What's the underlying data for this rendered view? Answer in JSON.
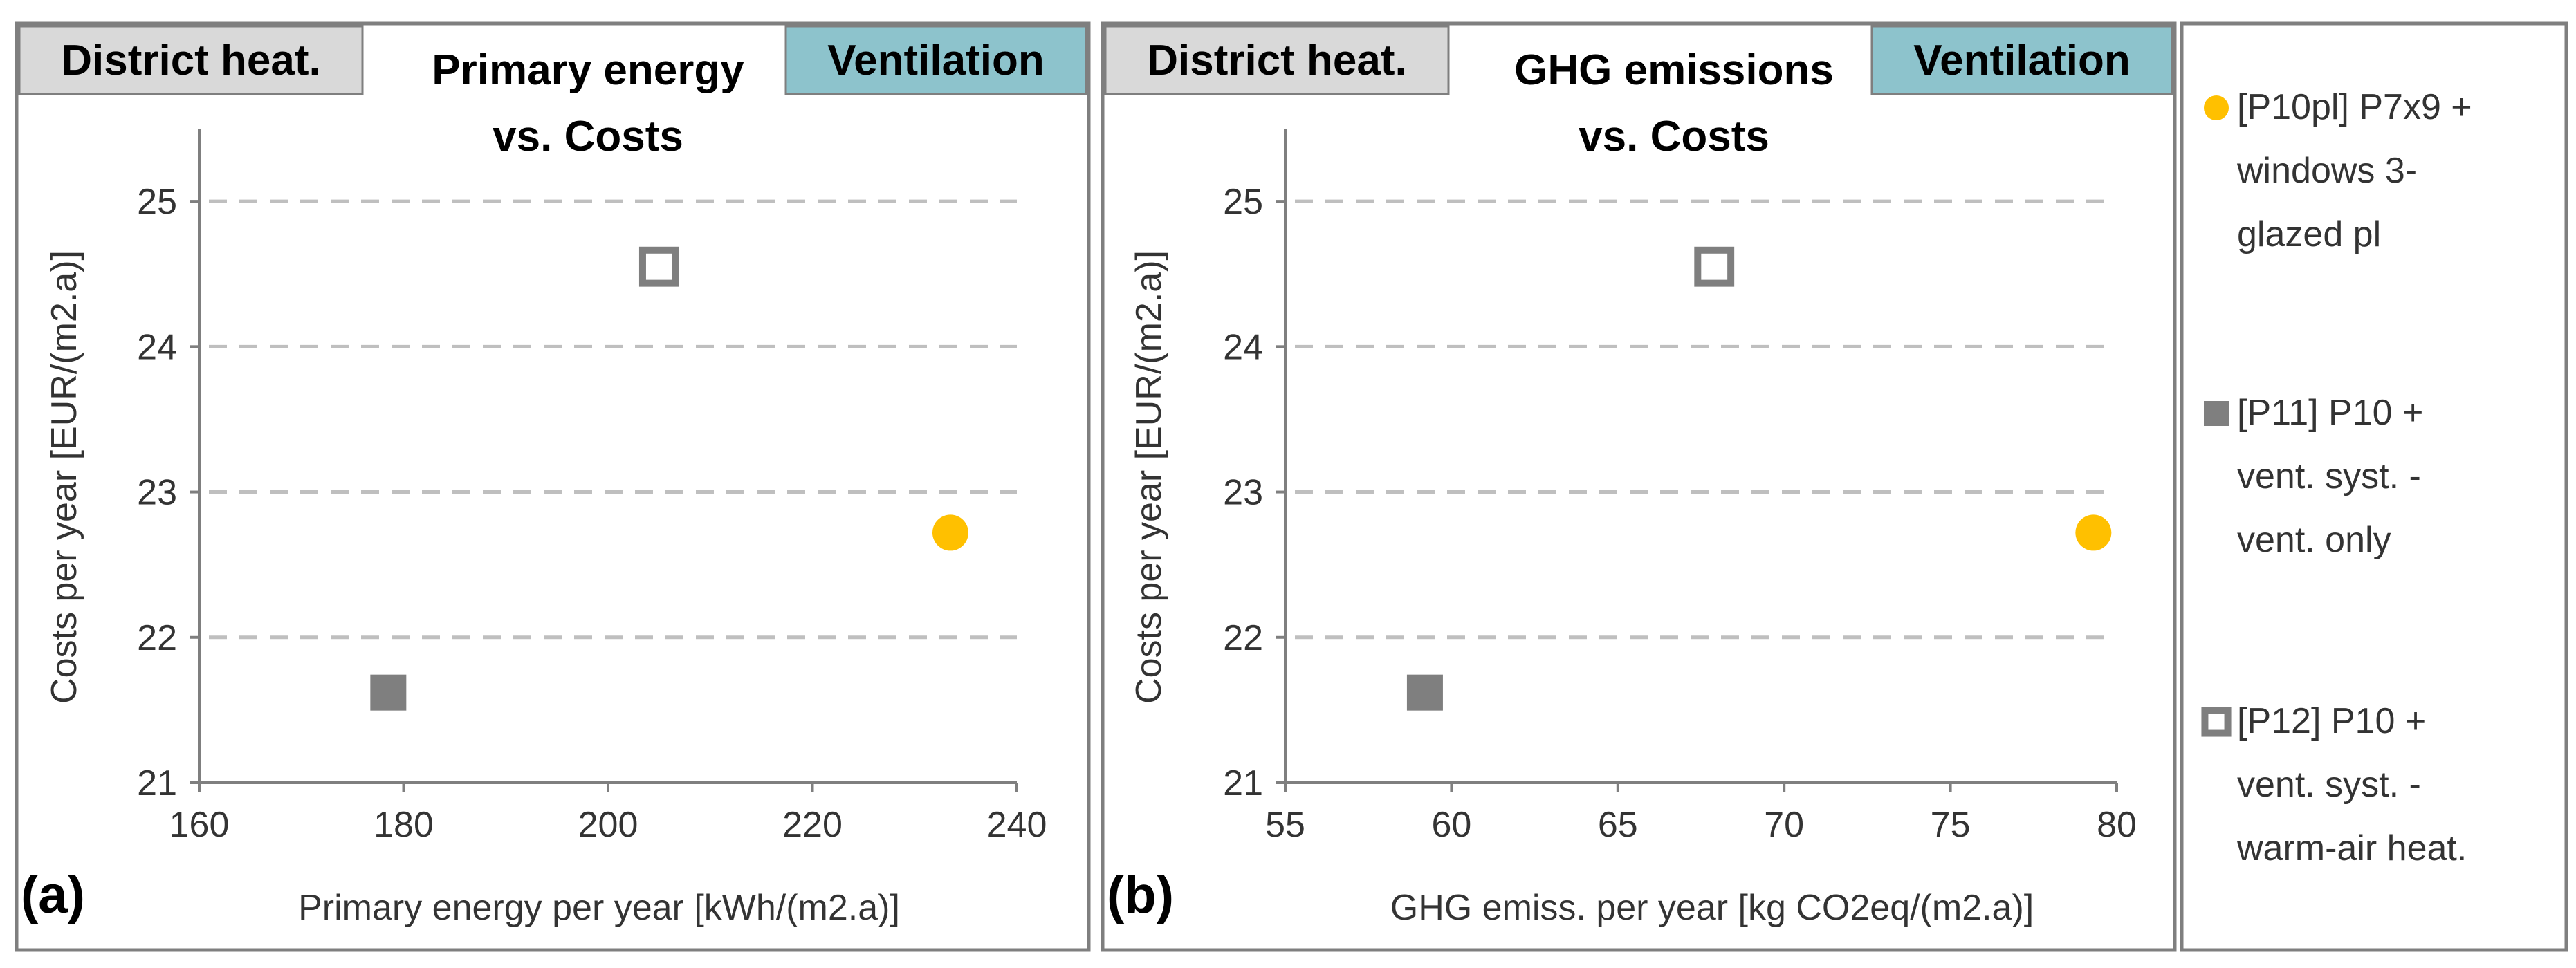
{
  "colors": {
    "district_tab": "#d9d9d9",
    "ventilation_tab": "#8dc3cc",
    "series_p10pl": "#ffc000",
    "series_p11": "#7f7f7f",
    "series_p12": "#7f7f7f"
  },
  "tags": {
    "district": "District heat.",
    "ventilation": "Ventilation"
  },
  "legend": [
    {
      "marker": "circle-filled",
      "lines": [
        "[P10pl] P7x9 +",
        "windows 3-",
        "glazed  pl"
      ]
    },
    {
      "marker": "square-filled",
      "lines": [
        "[P11] P10 +",
        "vent. syst. -",
        "vent. only"
      ]
    },
    {
      "marker": "square-open",
      "lines": [
        "[P12] P10 +",
        "vent. syst. -",
        "warm-air heat."
      ]
    }
  ],
  "chart_data": [
    {
      "type": "scatter",
      "panel": "(a)",
      "title_lines": [
        "Primary energy",
        "vs. Costs"
      ],
      "xlabel": "Primary energy per year  [kWh/(m2.a)]",
      "ylabel": "Costs per year  [EUR/(m2.a)]",
      "xlim": [
        160,
        240
      ],
      "ylim": [
        21,
        25.5
      ],
      "xticks": [
        160,
        180,
        200,
        220,
        240
      ],
      "yticks": [
        21,
        22,
        23,
        24,
        25
      ],
      "grid": "horizontal dashed",
      "series": [
        {
          "name": "[P10pl] P7x9 + windows 3-glazed pl",
          "marker": "circle-filled",
          "x": [
            233.5
          ],
          "y": [
            22.72
          ]
        },
        {
          "name": "[P11] P10 + vent. syst. - vent. only",
          "marker": "square-filled",
          "x": [
            178.5
          ],
          "y": [
            21.62
          ]
        },
        {
          "name": "[P12] P10 + vent. syst. - warm-air heat.",
          "marker": "square-open",
          "x": [
            205
          ],
          "y": [
            24.55
          ]
        }
      ]
    },
    {
      "type": "scatter",
      "panel": "(b)",
      "title_lines": [
        "GHG emissions",
        "vs. Costs"
      ],
      "xlabel": "GHG emiss. per year  [kg CO2eq/(m2.a)]",
      "ylabel": "Costs per year  [EUR/(m2.a)]",
      "xlim": [
        55,
        80
      ],
      "ylim": [
        21,
        25.5
      ],
      "xticks": [
        55,
        60,
        65,
        70,
        75,
        80
      ],
      "yticks": [
        21,
        22,
        23,
        24,
        25
      ],
      "grid": "horizontal dashed",
      "series": [
        {
          "name": "[P10pl] P7x9 + windows 3-glazed pl",
          "marker": "circle-filled",
          "x": [
            79.3
          ],
          "y": [
            22.72
          ]
        },
        {
          "name": "[P11] P10 + vent. syst. - vent. only",
          "marker": "square-filled",
          "x": [
            59.2
          ],
          "y": [
            21.62
          ]
        },
        {
          "name": "[P12] P10 + vent. syst. - warm-air heat.",
          "marker": "square-open",
          "x": [
            67.9
          ],
          "y": [
            24.55
          ]
        }
      ]
    }
  ]
}
